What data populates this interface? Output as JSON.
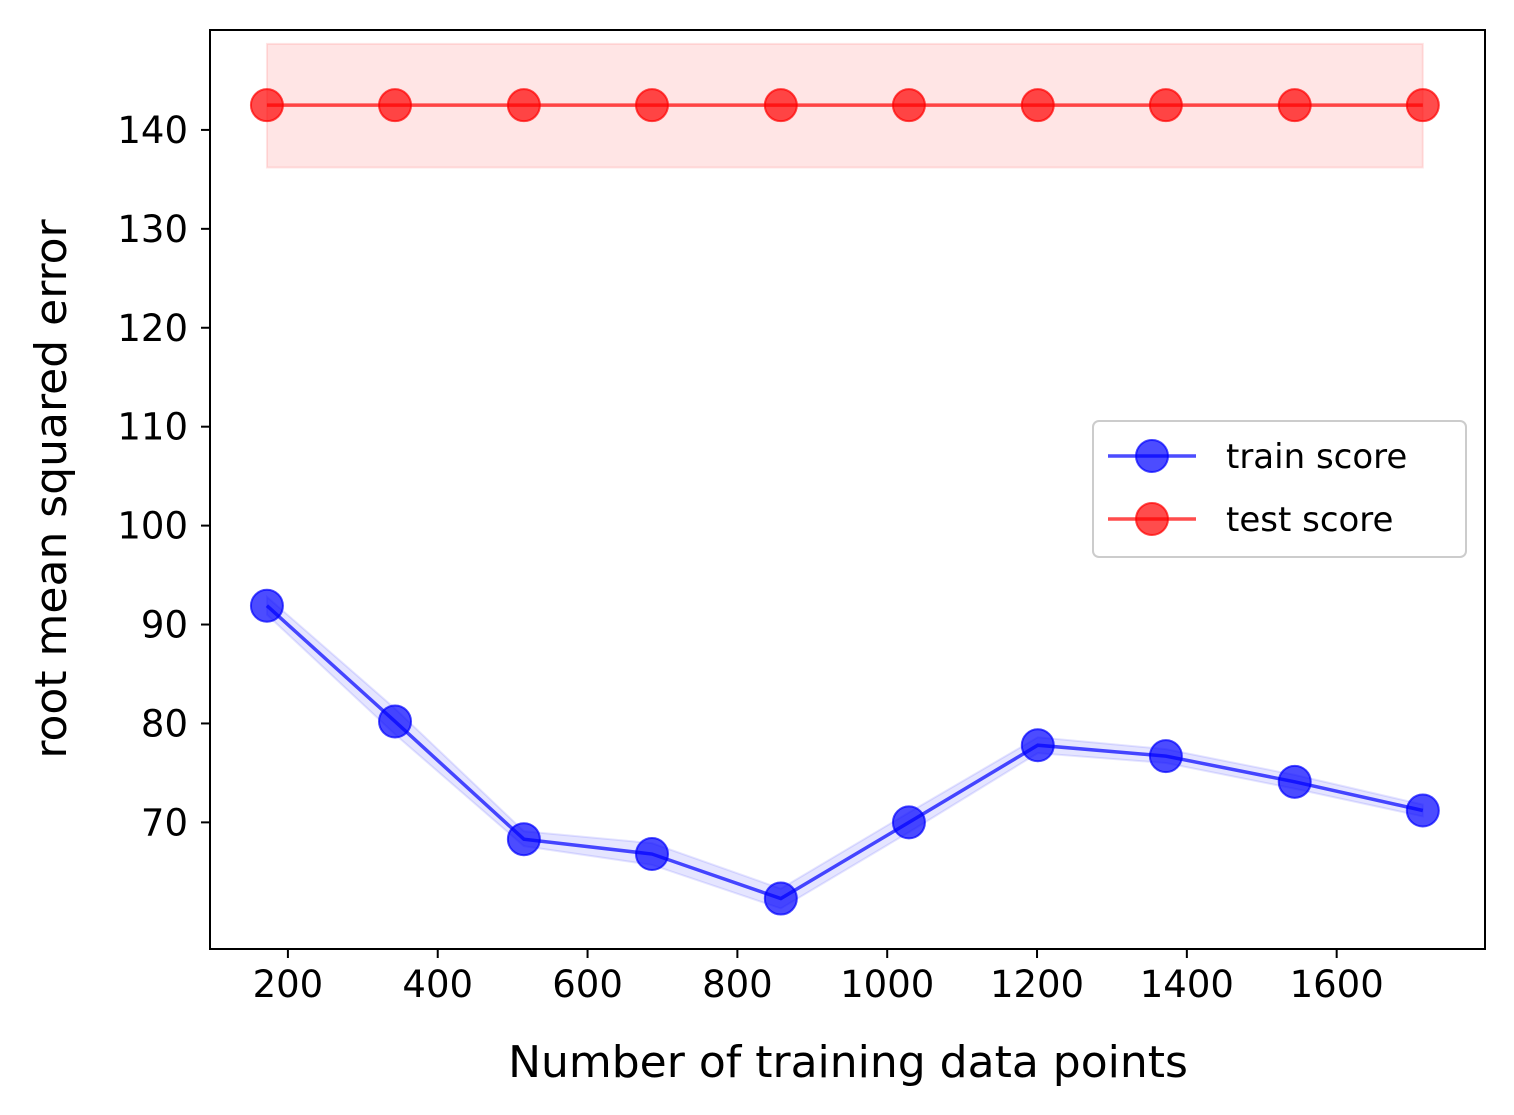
{
  "chart_data": {
    "type": "line",
    "title": "",
    "xlabel": "Number of training data points",
    "ylabel": "root mean squared error",
    "xlim": [
      96,
      1798
    ],
    "ylim": [
      57.2,
      150.1
    ],
    "xticks": [
      200,
      400,
      600,
      800,
      1000,
      1200,
      1400,
      1600
    ],
    "yticks": [
      70,
      80,
      90,
      100,
      110,
      120,
      130,
      140
    ],
    "grid": false,
    "legend_position": "center-right",
    "series": [
      {
        "name": "train score",
        "color": "#0000ff",
        "x": [
          172,
          343,
          515,
          686,
          858,
          1029,
          1201,
          1372,
          1544,
          1715
        ],
        "values": [
          91.9,
          80.2,
          68.3,
          66.8,
          62.3,
          70.0,
          77.8,
          76.7,
          74.1,
          71.2
        ],
        "band_lower": [
          91.0,
          78.9,
          67.6,
          65.7,
          61.3,
          69.0,
          77.0,
          76.0,
          73.4,
          70.6
        ],
        "band_upper": [
          92.8,
          81.5,
          69.1,
          67.9,
          63.3,
          71.0,
          78.6,
          77.4,
          74.8,
          71.8
        ]
      },
      {
        "name": "test score",
        "color": "#ff0000",
        "x": [
          172,
          343,
          515,
          686,
          858,
          1029,
          1201,
          1372,
          1544,
          1715
        ],
        "values": [
          142.5,
          142.5,
          142.5,
          142.5,
          142.5,
          142.5,
          142.5,
          142.5,
          142.5,
          142.5
        ],
        "band_lower": [
          136.2,
          136.2,
          136.2,
          136.2,
          136.2,
          136.2,
          136.2,
          136.2,
          136.2,
          136.2
        ],
        "band_upper": [
          148.7,
          148.7,
          148.7,
          148.7,
          148.7,
          148.7,
          148.7,
          148.7,
          148.7,
          148.7
        ]
      }
    ]
  }
}
